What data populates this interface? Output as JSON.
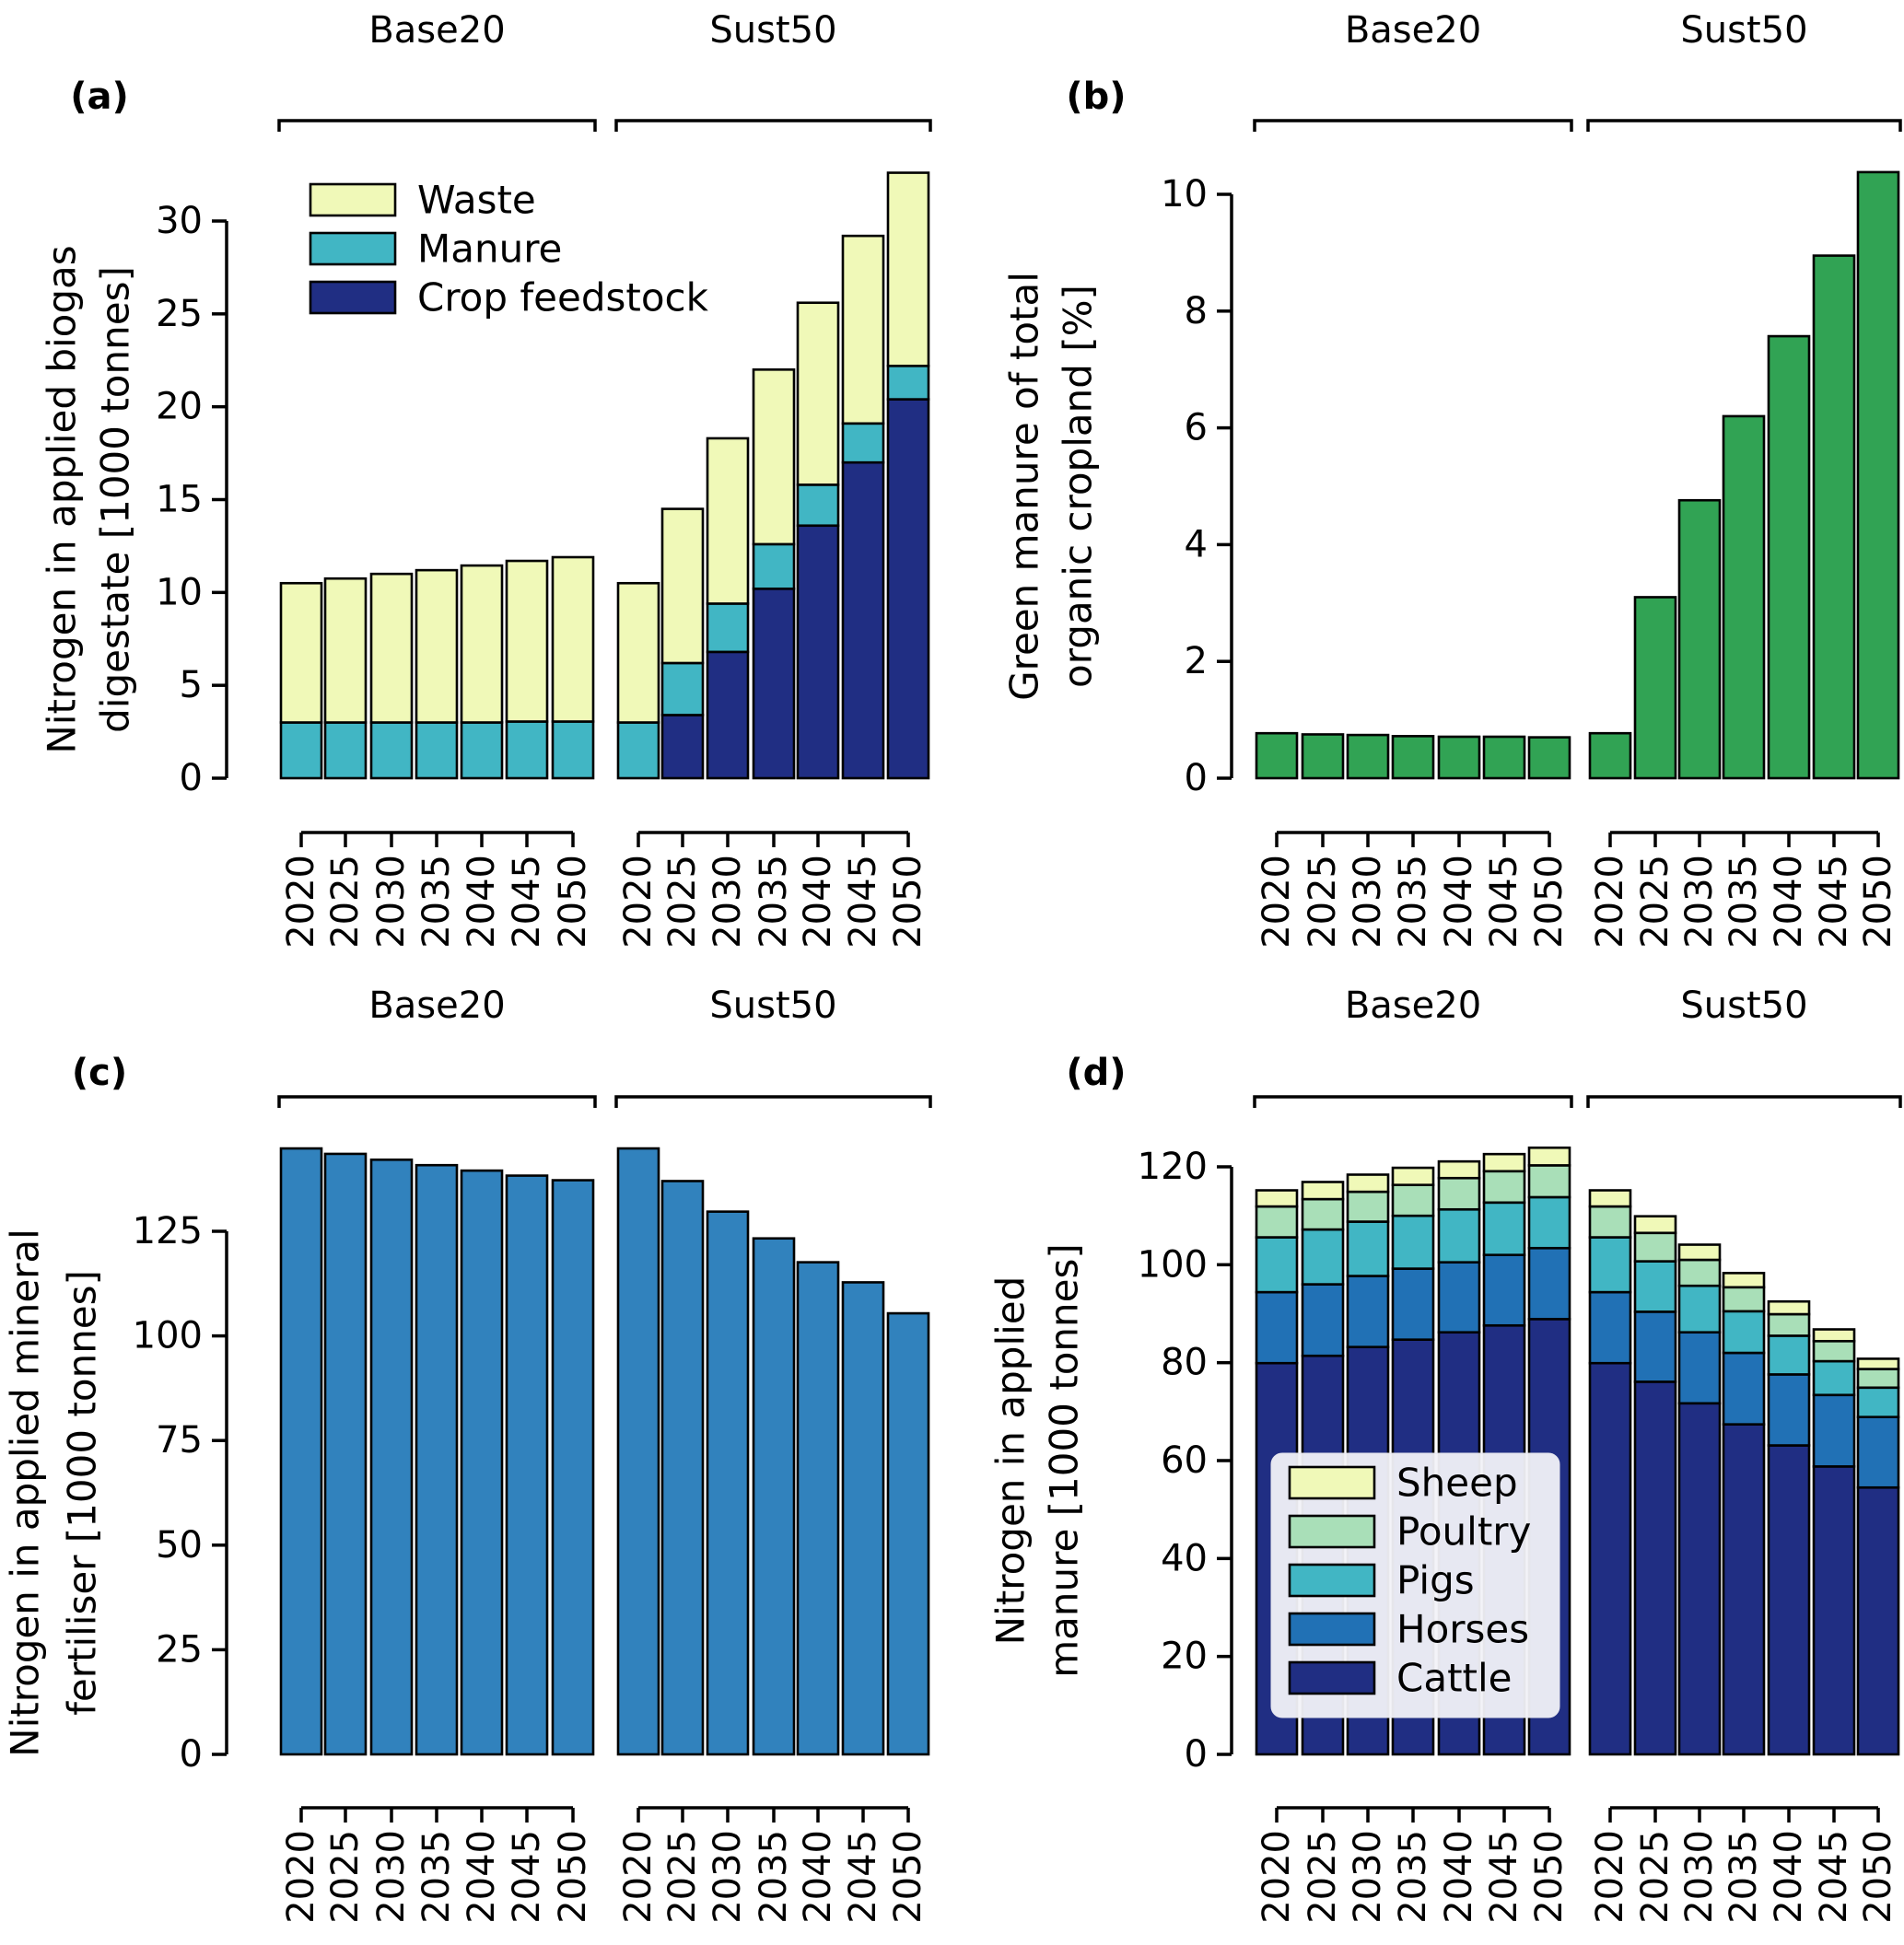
{
  "chart_data": [
    {
      "id": "a",
      "panel_label": "(a)",
      "type": "bar",
      "stacked": true,
      "groups": [
        "Base20",
        "Sust50"
      ],
      "categories": [
        "2020",
        "2025",
        "2030",
        "2035",
        "2040",
        "2045",
        "2050"
      ],
      "ylabel_lines": [
        "Nitrogen in applied biogas",
        "digestate [1000 tonnes]"
      ],
      "xlabel": "",
      "ylim": [
        0,
        33
      ],
      "yticks": [
        0,
        5,
        10,
        15,
        20,
        25,
        30
      ],
      "legend": {
        "position": "upper-left",
        "entries": [
          "Waste",
          "Manure",
          "Crop feedstock"
        ],
        "framed": false
      },
      "series": [
        {
          "name": "Crop feedstock",
          "color": "#202e83",
          "values": {
            "Base20": [
              0,
              0,
              0,
              0,
              0,
              0,
              0
            ],
            "Sust50": [
              0,
              3.4,
              6.8,
              10.2,
              13.6,
              17.0,
              20.4
            ]
          }
        },
        {
          "name": "Manure",
          "color": "#41b6c4",
          "values": {
            "Base20": [
              3.0,
              3.0,
              3.0,
              3.0,
              3.0,
              3.05,
              3.05
            ],
            "Sust50": [
              3.0,
              2.8,
              2.6,
              2.4,
              2.2,
              2.1,
              1.8
            ]
          }
        },
        {
          "name": "Waste",
          "color": "#f0f9b8",
          "values": {
            "Base20": [
              7.5,
              7.75,
              8.0,
              8.2,
              8.45,
              8.65,
              8.85
            ],
            "Sust50": [
              7.5,
              8.3,
              8.9,
              9.4,
              9.8,
              10.1,
              10.4
            ]
          }
        }
      ]
    },
    {
      "id": "b",
      "panel_label": "(b)",
      "type": "bar",
      "stacked": false,
      "groups": [
        "Base20",
        "Sust50"
      ],
      "categories": [
        "2020",
        "2025",
        "2030",
        "2035",
        "2040",
        "2045",
        "2050"
      ],
      "ylabel_lines": [
        "Green manure of total",
        "organic cropland [%]"
      ],
      "xlabel": "",
      "ylim": [
        0,
        10.5
      ],
      "yticks": [
        0,
        2,
        4,
        6,
        8,
        10
      ],
      "series": [
        {
          "name": "Green manure share",
          "color": "#31a354",
          "values": {
            "Base20": [
              0.77,
              0.75,
              0.74,
              0.72,
              0.71,
              0.71,
              0.7
            ],
            "Sust50": [
              0.77,
              3.1,
              4.76,
              6.2,
              7.57,
              8.95,
              10.38
            ]
          }
        }
      ]
    },
    {
      "id": "c",
      "panel_label": "(c)",
      "type": "bar",
      "stacked": false,
      "groups": [
        "Base20",
        "Sust50"
      ],
      "categories": [
        "2020",
        "2025",
        "2030",
        "2035",
        "2040",
        "2045",
        "2050"
      ],
      "ylabel_lines": [
        "Nitrogen in applied mineral",
        "fertiliser [1000 tonnes]"
      ],
      "xlabel": "",
      "ylim": [
        0,
        146
      ],
      "yticks": [
        0,
        25,
        50,
        75,
        100,
        125
      ],
      "series": [
        {
          "name": "Mineral fertiliser N",
          "color": "#3182bd",
          "values": {
            "Base20": [
              144.8,
              143.5,
              142.1,
              140.8,
              139.5,
              138.3,
              137.2
            ],
            "Sust50": [
              144.8,
              137.0,
              129.7,
              123.3,
              117.6,
              112.8,
              105.4
            ]
          }
        }
      ]
    },
    {
      "id": "d",
      "panel_label": "(d)",
      "type": "bar",
      "stacked": true,
      "groups": [
        "Base20",
        "Sust50"
      ],
      "categories": [
        "2020",
        "2025",
        "2030",
        "2035",
        "2040",
        "2045",
        "2050"
      ],
      "ylabel_lines": [
        "Nitrogen in applied",
        "manure [1000 tonnes]"
      ],
      "xlabel": "",
      "ylim": [
        0,
        125
      ],
      "yticks": [
        0,
        20,
        40,
        60,
        80,
        100,
        120
      ],
      "legend": {
        "position": "lower-left",
        "entries": [
          "Sheep",
          "Poultry",
          "Pigs",
          "Horses",
          "Cattle"
        ],
        "framed": true
      },
      "series": [
        {
          "name": "Cattle",
          "color": "#202e83",
          "values": {
            "Base20": [
              79.9,
              81.4,
              83.2,
              84.7,
              86.2,
              87.6,
              88.9
            ],
            "Sust50": [
              79.9,
              76.1,
              71.7,
              67.4,
              63.1,
              58.8,
              54.5
            ]
          }
        },
        {
          "name": "Horses",
          "color": "#2171b5",
          "values": {
            "Base20": [
              14.5,
              14.6,
              14.5,
              14.5,
              14.3,
              14.4,
              14.5
            ],
            "Sust50": [
              14.5,
              14.3,
              14.5,
              14.6,
              14.5,
              14.6,
              14.4
            ]
          }
        },
        {
          "name": "Pigs",
          "color": "#41b6c4",
          "values": {
            "Base20": [
              11.2,
              11.2,
              11.1,
              10.8,
              10.8,
              10.7,
              10.4
            ],
            "Sust50": [
              11.2,
              10.3,
              9.5,
              8.5,
              7.9,
              6.9,
              6.0
            ]
          }
        },
        {
          "name": "Poultry",
          "color": "#a9dfb8",
          "values": {
            "Base20": [
              6.3,
              6.2,
              6.1,
              6.3,
              6.4,
              6.4,
              6.5
            ],
            "Sust50": [
              6.3,
              5.8,
              5.3,
              4.9,
              4.4,
              4.1,
              3.8
            ]
          }
        },
        {
          "name": "Sheep",
          "color": "#f0f9b8",
          "values": {
            "Base20": [
              3.3,
              3.5,
              3.5,
              3.5,
              3.4,
              3.5,
              3.6
            ],
            "Sust50": [
              3.3,
              3.4,
              3.1,
              2.9,
              2.6,
              2.4,
              2.1
            ]
          }
        }
      ]
    }
  ]
}
